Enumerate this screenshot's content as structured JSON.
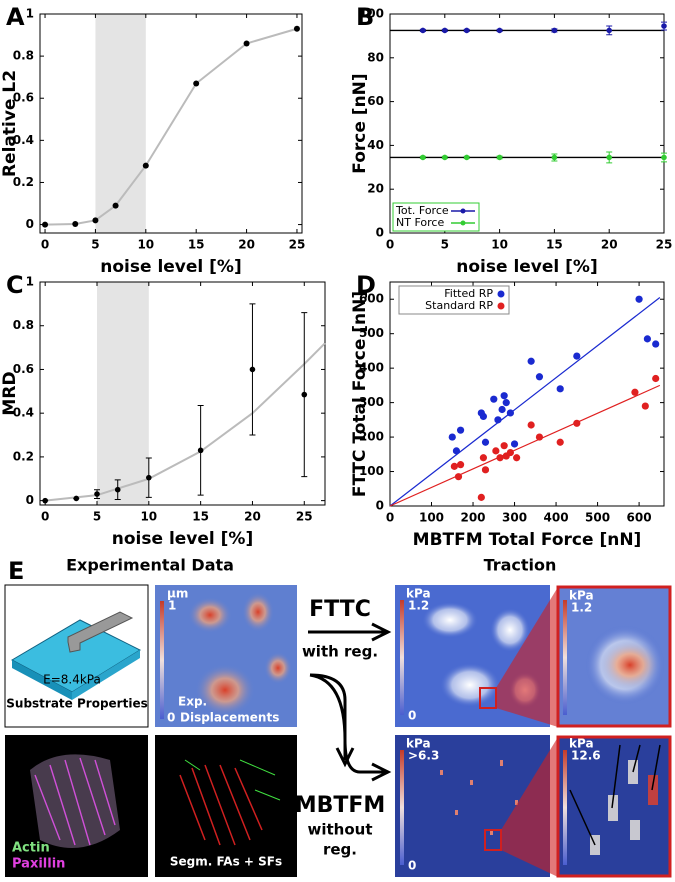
{
  "chart_data": [
    {
      "label": "A",
      "type": "line",
      "xlabel": "noise level [%]",
      "ylabel": "Relative L2",
      "x": [
        0,
        3,
        5,
        7,
        10,
        15,
        20,
        25
      ],
      "values": [
        0,
        0.003,
        0.02,
        0.09,
        0.28,
        0.67,
        0.86,
        0.93
      ],
      "color": "#bbbbbb",
      "marker_color": "#000000",
      "highlight_x": [
        5,
        10
      ],
      "xlim": [
        -0.5,
        25.5
      ],
      "ylim": [
        -0.04,
        1
      ],
      "xticks": [
        0,
        5,
        10,
        15,
        20,
        25
      ],
      "yticks": [
        0,
        0.2,
        0.4,
        0.6,
        0.8,
        1
      ]
    },
    {
      "label": "B",
      "type": "errorbar",
      "xlabel": "noise level [%]",
      "ylabel": "Force [nN]",
      "x": [
        3,
        5,
        7,
        10,
        15,
        20,
        25
      ],
      "series": [
        {
          "name": "Tot. Force",
          "color": "#1a1aa8",
          "values": [
            92.5,
            92.5,
            92.5,
            92.5,
            92.5,
            92.5,
            94.5
          ],
          "errors": [
            0.5,
            0.5,
            0.5,
            0.5,
            0.7,
            2,
            1.8
          ]
        },
        {
          "name": "NT Force",
          "color": "#33cc33",
          "values": [
            34.5,
            34.5,
            34.5,
            34.5,
            34.5,
            34.5,
            34.5
          ],
          "errors": [
            0.5,
            0.5,
            0.5,
            0.6,
            1.6,
            2.5,
            2
          ]
        }
      ],
      "hlines": [
        92.5,
        34.5
      ],
      "legend": "lower left",
      "xlim": [
        0,
        25
      ],
      "ylim": [
        0,
        100
      ],
      "xticks": [
        0,
        5,
        10,
        15,
        20,
        25
      ],
      "yticks": [
        0,
        20,
        40,
        60,
        80,
        100
      ]
    },
    {
      "label": "C",
      "type": "errorbar",
      "xlabel": "noise level [%]",
      "ylabel": "MRD",
      "x": [
        0,
        3,
        5,
        7,
        10,
        15,
        20,
        25
      ],
      "series": [
        {
          "color": "#000000",
          "values": [
            0,
            0.01,
            0.03,
            0.05,
            0.105,
            0.23,
            0.6,
            0.485
          ],
          "errors": [
            0,
            0,
            0.02,
            0.045,
            0.09,
            0.205,
            0.3,
            0.375
          ]
        }
      ],
      "fit": {
        "color": "#bbbbbb",
        "x": [
          0,
          5,
          10,
          15,
          20,
          25,
          27
        ],
        "values": [
          0,
          0.025,
          0.1,
          0.225,
          0.4,
          0.625,
          0.72
        ]
      },
      "highlight_x": [
        5,
        10
      ],
      "xlim": [
        -0.5,
        27
      ],
      "ylim": [
        -0.02,
        1
      ],
      "xticks": [
        0,
        5,
        10,
        15,
        20,
        25
      ],
      "yticks": [
        0,
        0.2,
        0.4,
        0.6,
        0.8,
        1
      ]
    },
    {
      "label": "D",
      "type": "scatter",
      "xlabel": "MBTFM Total Force [nN]",
      "ylabel": "FTTC Total Force [nN]",
      "series": [
        {
          "name": "Fitted RP",
          "color": "#1a2ad0",
          "x": [
            150,
            160,
            170,
            220,
            225,
            230,
            250,
            260,
            270,
            275,
            280,
            290,
            300,
            340,
            360,
            410,
            450,
            600,
            620,
            640
          ],
          "values": [
            200,
            160,
            220,
            270,
            260,
            185,
            310,
            250,
            280,
            320,
            300,
            270,
            180,
            420,
            375,
            340,
            435,
            600,
            485,
            470
          ],
          "fit_x": [
            0,
            650
          ],
          "fit_values": [
            0,
            605
          ]
        },
        {
          "name": "Standard RP",
          "color": "#e02020",
          "x": [
            155,
            165,
            170,
            220,
            225,
            230,
            255,
            265,
            275,
            280,
            290,
            305,
            340,
            360,
            410,
            450,
            590,
            615,
            640
          ],
          "values": [
            115,
            85,
            120,
            25,
            140,
            105,
            160,
            140,
            175,
            145,
            155,
            140,
            235,
            200,
            185,
            240,
            330,
            290,
            370
          ],
          "fit_x": [
            0,
            650
          ],
          "fit_values": [
            0,
            350
          ]
        }
      ],
      "legend": "upper left",
      "xlim": [
        0,
        660
      ],
      "ylim": [
        0,
        650
      ],
      "xticks": [
        0,
        100,
        200,
        300,
        400,
        500,
        600
      ],
      "yticks": [
        0,
        100,
        200,
        300,
        400,
        500,
        600
      ]
    }
  ],
  "panel_e": {
    "label": "E",
    "left_title": "Experimental Data",
    "right_title": "Traction",
    "substrate": {
      "modulus": "E=8.4kPa",
      "caption": "Substrate Properties"
    },
    "displacements": {
      "unit": "μm",
      "max": "1",
      "min": "0",
      "caption_1": "Exp.",
      "caption_2": "Displacements"
    },
    "fttc": {
      "method": "FTTC",
      "note": "with reg.",
      "unit": "kPa",
      "max": "1.2",
      "min": "0",
      "zoom_unit": "kPa",
      "zoom_max": "1.2"
    },
    "mbtfm": {
      "method": "MBTFM",
      "note_1": "without",
      "note_2": "reg.",
      "unit": "kPa",
      "max": ">6.3",
      "min": "0",
      "zoom_unit": "kPa",
      "zoom_max": "12.6"
    },
    "stain": {
      "actin": "Actin",
      "paxillin": "Paxillin"
    },
    "segmentation": "Segm. FAs + SFs"
  }
}
